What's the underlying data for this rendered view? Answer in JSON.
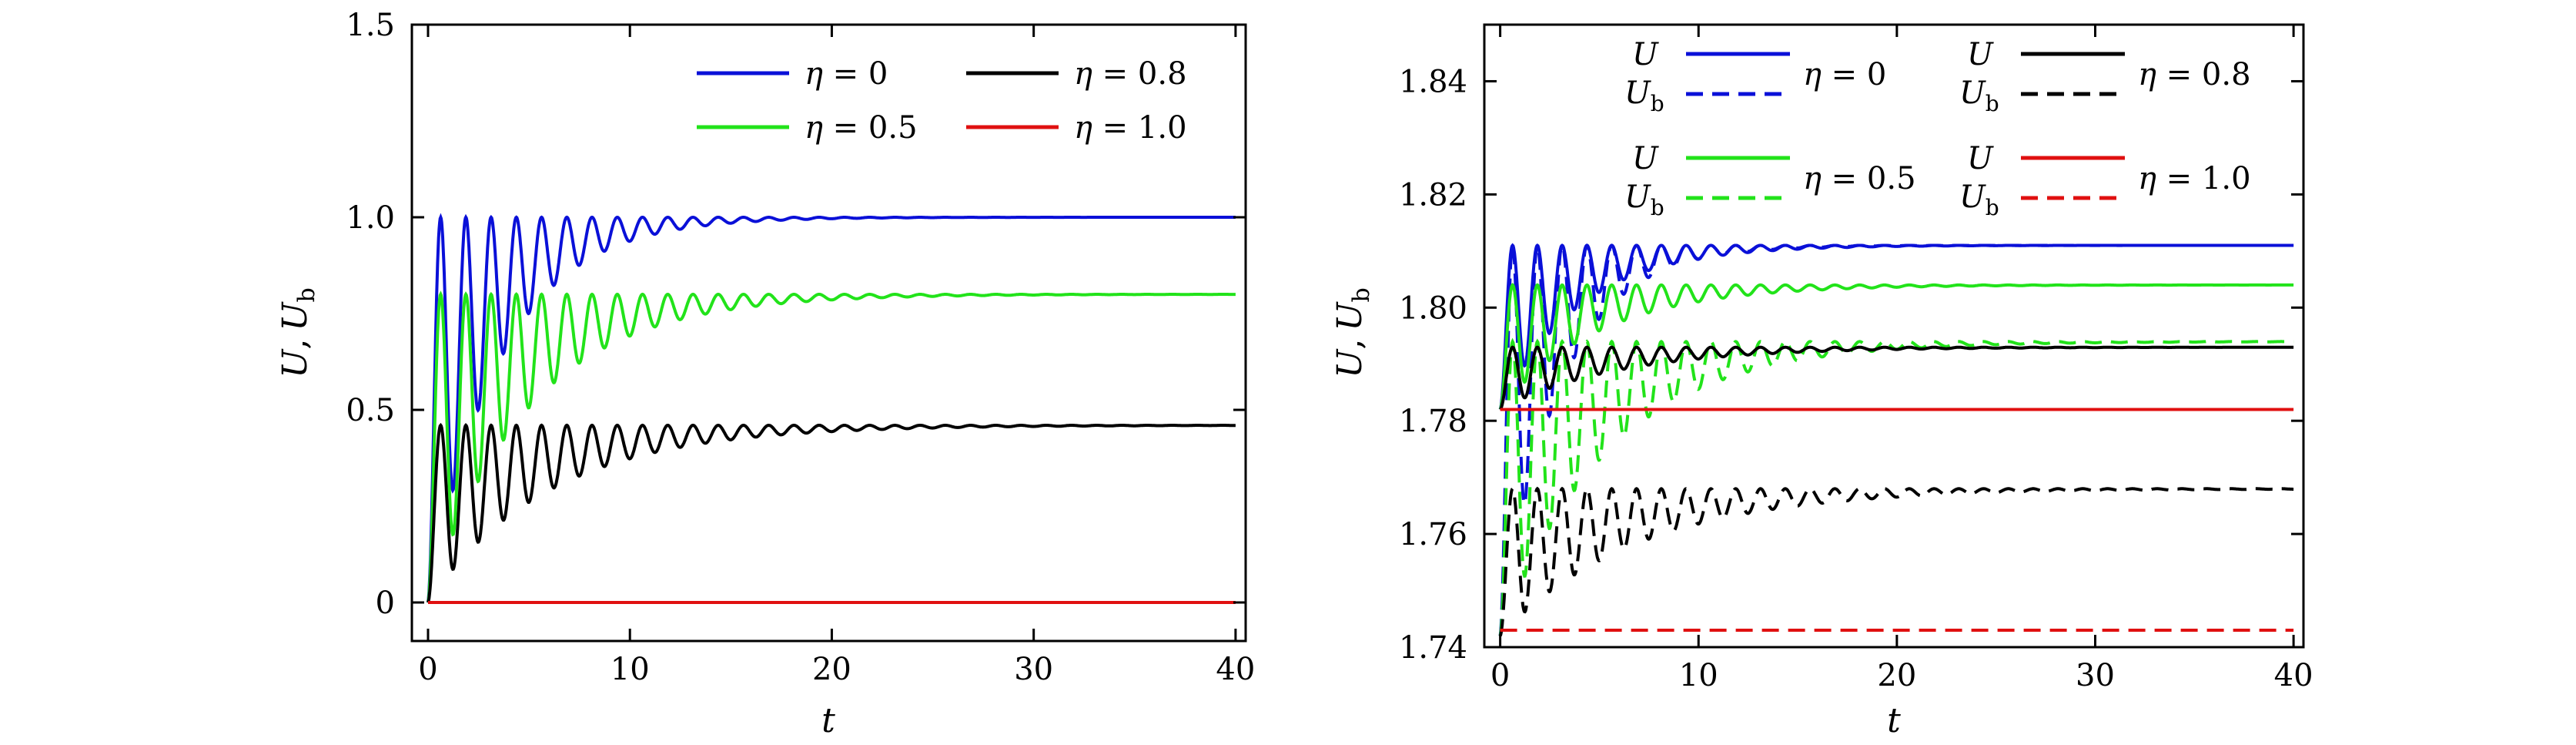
{
  "chart_data": [
    {
      "type": "line",
      "title": "",
      "xlabel": "t",
      "ylabel": "U, U_b",
      "ylabel_parts": {
        "u": "U",
        "comma": ",",
        "ub": "U",
        "sub": "b"
      },
      "xlim": [
        -0.8,
        40.5
      ],
      "ylim": [
        -0.1,
        1.5
      ],
      "xticks": [
        0,
        10,
        20,
        30,
        40
      ],
      "xtick_labels": [
        "0",
        "10",
        "20",
        "30",
        "40"
      ],
      "yticks": [
        0,
        0.5,
        1.0,
        1.5
      ],
      "ytick_labels": [
        "0",
        "0.5",
        "1.0",
        "1.5"
      ],
      "series": [
        {
          "name": "η = 0",
          "eta": "0",
          "color": "#0a10d8",
          "dash": "solid",
          "target": 1.0,
          "amp": 1.0,
          "tau": 3.6,
          "period": 1.25,
          "start": 0
        },
        {
          "name": "η = 0.5",
          "eta": "0.5",
          "color": "#22e31a",
          "dash": "solid",
          "target": 0.8,
          "amp": 0.8,
          "tau": 5.0,
          "period": 1.25,
          "start": 0
        },
        {
          "name": "η = 0.8",
          "eta": "0.8",
          "color": "#000000",
          "dash": "solid",
          "target": 0.46,
          "amp": 0.46,
          "tau": 6.0,
          "period": 1.25,
          "start": 0
        },
        {
          "name": "η = 1.0",
          "eta": "1.0",
          "color": "#e01010",
          "dash": "solid",
          "target": 0,
          "amp": 0,
          "tau": 1,
          "period": 1.25,
          "start": 0
        }
      ],
      "legend": {
        "placement": "top-right",
        "entries": [
          {
            "label_prefix": "η",
            "label_rest": " = 0",
            "color": "#0a10d8"
          },
          {
            "label_prefix": "η",
            "label_rest": " = 0.8",
            "color": "#000000"
          },
          {
            "label_prefix": "η",
            "label_rest": " = 0.5",
            "color": "#22e31a"
          },
          {
            "label_prefix": "η",
            "label_rest": " = 1.0",
            "color": "#e01010"
          }
        ]
      }
    },
    {
      "type": "line",
      "title": "",
      "xlabel": "t",
      "ylabel": "U, U_b",
      "ylabel_parts": {
        "u": "U",
        "comma": ",",
        "ub": "U",
        "sub": "b"
      },
      "xlim": [
        -0.8,
        40.5
      ],
      "ylim": [
        1.74,
        1.85
      ],
      "xticks": [
        0,
        10,
        20,
        30,
        40
      ],
      "xtick_labels": [
        "0",
        "10",
        "20",
        "30",
        "40"
      ],
      "yticks": [
        1.74,
        1.76,
        1.78,
        1.8,
        1.82,
        1.84
      ],
      "ytick_labels": [
        "1.74",
        "1.76",
        "1.78",
        "1.80",
        "1.82",
        "1.84"
      ],
      "series": [
        {
          "name": "U η = 0",
          "color": "#0a10d8",
          "dash": "solid",
          "target": 1.811,
          "amp": 0.03,
          "tau": 4.0,
          "period": 1.25,
          "start": 1.782
        },
        {
          "name": "U_b η = 0",
          "color": "#0a10d8",
          "dash": "dashed",
          "target": 1.811,
          "amp": 0.05,
          "tau": 3.0,
          "period": 1.25,
          "start": 1.742
        },
        {
          "name": "U η = 0.5",
          "color": "#22e31a",
          "dash": "solid",
          "target": 1.804,
          "amp": 0.018,
          "tau": 5.0,
          "period": 1.25,
          "start": 1.782
        },
        {
          "name": "U_b η = 0.5",
          "color": "#22e31a",
          "dash": "dashed",
          "target": 1.794,
          "amp": 0.04,
          "tau": 5.5,
          "period": 1.25,
          "start": 1.742
        },
        {
          "name": "U η = 0.8",
          "color": "#000000",
          "dash": "solid",
          "target": 1.793,
          "amp": 0.008,
          "tau": 6.0,
          "period": 1.25,
          "start": 1.782
        },
        {
          "name": "U_b η = 0.8",
          "color": "#000000",
          "dash": "dashed",
          "target": 1.768,
          "amp": 0.012,
          "tau": 7.0,
          "period": 1.25,
          "start": 1.742
        },
        {
          "name": "U η = 1.0",
          "color": "#e01010",
          "dash": "solid",
          "target": 1.782,
          "amp": 0,
          "tau": 1,
          "period": 1.25,
          "start": 1.782
        },
        {
          "name": "U_b η = 1.0",
          "color": "#e01010",
          "dash": "dashed",
          "target": 1.743,
          "amp": 0,
          "tau": 1,
          "period": 1.25,
          "start": 1.743
        }
      ],
      "legend": {
        "placement": "top",
        "groups": [
          {
            "eta_rest": " = 0",
            "color": "#0a10d8"
          },
          {
            "eta_rest": " = 0.8",
            "color": "#000000"
          },
          {
            "eta_rest": " = 0.5",
            "color": "#22e31a"
          },
          {
            "eta_rest": " = 1.0",
            "color": "#e01010"
          }
        ],
        "u": "U",
        "ub": "U",
        "sub": "b",
        "eta": "η"
      }
    }
  ]
}
